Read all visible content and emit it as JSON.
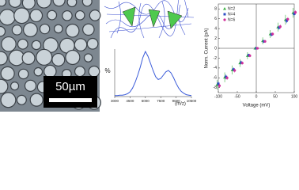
{
  "image": {
    "scale_bar": "50µm"
  },
  "chart_data": [
    {
      "type": "line",
      "xlabel": "(m/z)",
      "ylabel": "%",
      "x": [
        3000,
        3250,
        3500,
        3750,
        4000,
        4250,
        4500,
        4750,
        5000,
        5250,
        5500,
        5750,
        6000,
        6250,
        6500,
        6750,
        7000,
        7250,
        7500,
        7750,
        8000,
        8250,
        8500,
        8750,
        9000,
        9250,
        9500,
        9750,
        10000,
        10250,
        10500
      ],
      "series": [
        {
          "color": "#3a5bd9",
          "values": [
            2,
            2,
            3,
            3,
            4,
            6,
            10,
            18,
            30,
            45,
            62,
            82,
            95,
            85,
            70,
            55,
            42,
            36,
            38,
            45,
            52,
            55,
            50,
            40,
            28,
            18,
            11,
            7,
            4,
            3,
            2
          ]
        }
      ],
      "xlim": [
        3000,
        10500
      ],
      "xticks": [
        3000,
        4500,
        6000,
        7500,
        9000,
        10500
      ],
      "ylim": [
        0,
        100
      ]
    },
    {
      "type": "scatter",
      "xlabel": "Voltage (mV)",
      "ylabel": "Norm. Current (pA)",
      "x": [
        -100,
        -80,
        -60,
        -40,
        -20,
        0,
        20,
        40,
        60,
        80,
        100
      ],
      "series": [
        {
          "name": "N=2",
          "color": "#3cb043",
          "marker": "triangle",
          "values": [
            -7.4,
            -5.9,
            -4.4,
            -3.0,
            -1.5,
            0,
            1.5,
            2.9,
            4.3,
            5.8,
            7.2
          ],
          "errors": [
            1.0,
            1.0,
            0.9,
            0.8,
            0.7,
            0.3,
            0.7,
            0.8,
            0.9,
            1.0,
            1.0
          ]
        },
        {
          "name": "N=4",
          "color": "#2b4cc4",
          "marker": "square",
          "values": [
            -7.2,
            -5.8,
            -4.3,
            -2.9,
            -1.4,
            0,
            1.4,
            2.8,
            4.2,
            5.6,
            7.0
          ],
          "errors": [
            0.5,
            0.5,
            0.4,
            0.4,
            0.3,
            0.2,
            0.3,
            0.4,
            0.4,
            0.5,
            0.5
          ]
        },
        {
          "name": "N=6",
          "color": "#d0309a",
          "marker": "circle",
          "values": [
            -7.6,
            -6.0,
            -4.5,
            -3.0,
            -1.5,
            0,
            1.4,
            2.9,
            4.4,
            5.9,
            7.3
          ],
          "errors": [
            0.4,
            0.4,
            0.4,
            0.3,
            0.3,
            0.2,
            0.3,
            0.3,
            0.4,
            0.4,
            0.4
          ]
        }
      ],
      "xlim": [
        -100,
        100
      ],
      "xticks": [
        -100,
        -50,
        0,
        50,
        100
      ],
      "ylim": [
        -9,
        9
      ],
      "yticks": [
        -8,
        -6,
        -4,
        -2,
        0,
        2,
        4,
        6,
        8
      ],
      "legend": "upper left"
    }
  ]
}
